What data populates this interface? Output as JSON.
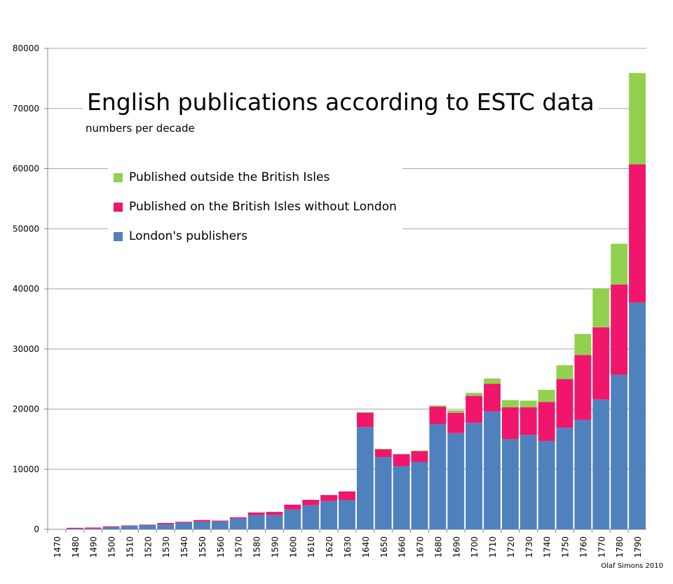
{
  "chart_data": {
    "type": "bar",
    "stacked": true,
    "title": "English publications according to ESTC data",
    "subtitle": "numbers per decade",
    "xlabel": "",
    "ylabel": "",
    "ylim": [
      0,
      80000
    ],
    "yticks": [
      0,
      10000,
      20000,
      30000,
      40000,
      50000,
      60000,
      70000,
      80000
    ],
    "grid": true,
    "legend_position": "top-left",
    "categories": [
      "1470",
      "1480",
      "1490",
      "1500",
      "1510",
      "1520",
      "1530",
      "1540",
      "1550",
      "1560",
      "1570",
      "1580",
      "1590",
      "1600",
      "1610",
      "1620",
      "1630",
      "1640",
      "1650",
      "1660",
      "1670",
      "1680",
      "1690",
      "1700",
      "1710",
      "1720",
      "1730",
      "1740",
      "1750",
      "1760",
      "1770",
      "1780",
      "1790"
    ],
    "series": [
      {
        "name": "London's publishers",
        "color": "#4f81bd",
        "values": [
          0,
          100,
          150,
          400,
          550,
          700,
          800,
          1100,
          1300,
          1300,
          1800,
          2400,
          2400,
          3300,
          4000,
          4700,
          4900,
          17000,
          12000,
          10500,
          11200,
          17500,
          16000,
          17700,
          19600,
          15000,
          15700,
          14700,
          16900,
          18200,
          21600,
          25700,
          37700
        ]
      },
      {
        "name": "Published on the British Isles without London",
        "color": "#f0166b",
        "values": [
          0,
          150,
          150,
          100,
          100,
          80,
          250,
          150,
          250,
          150,
          200,
          400,
          500,
          800,
          900,
          1000,
          1400,
          2400,
          1300,
          2000,
          1800,
          2900,
          3400,
          4500,
          4600,
          5300,
          4600,
          6500,
          8100,
          10800,
          12000,
          15000,
          23000
        ]
      },
      {
        "name": "Published outside the British Isles",
        "color": "#92d050",
        "values": [
          0,
          0,
          0,
          0,
          0,
          0,
          0,
          0,
          0,
          0,
          0,
          0,
          0,
          0,
          0,
          0,
          0,
          100,
          100,
          0,
          100,
          200,
          400,
          500,
          900,
          1200,
          1100,
          2000,
          2300,
          3500,
          6500,
          6800,
          15200
        ]
      }
    ],
    "credit": "Olaf Simons 2010"
  }
}
